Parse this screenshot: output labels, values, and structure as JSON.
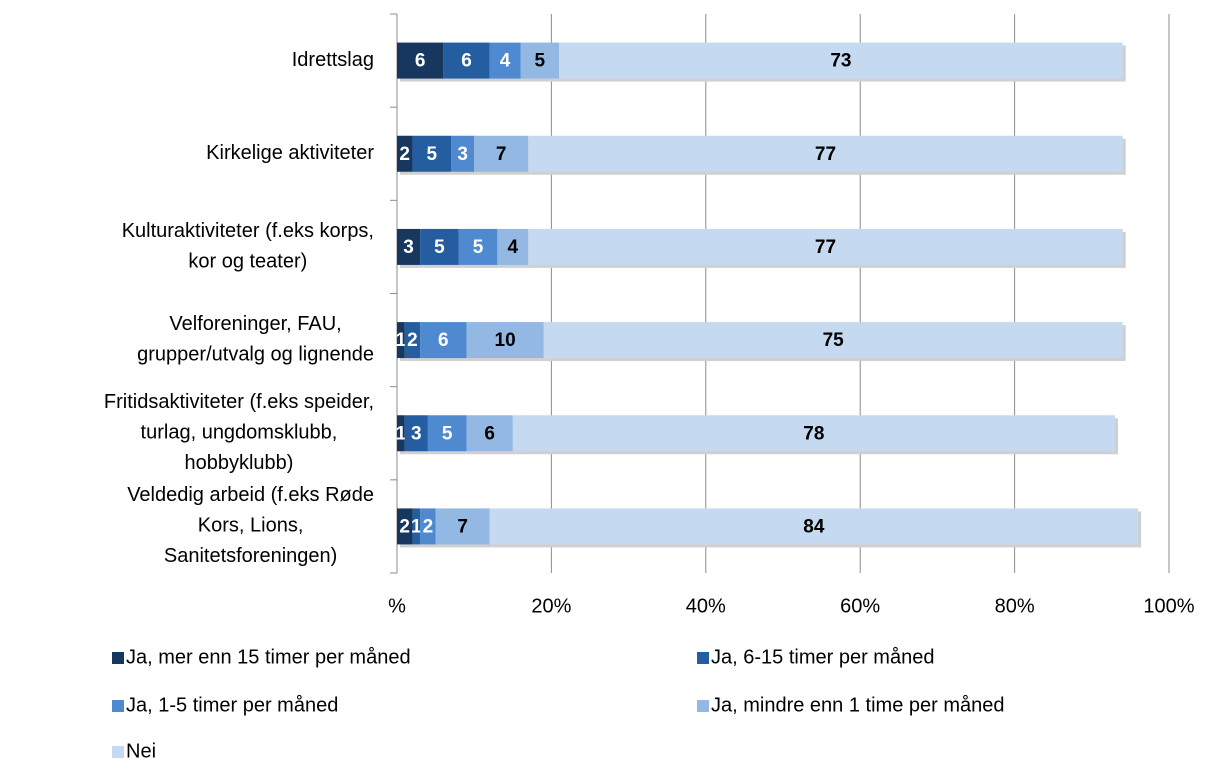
{
  "chart_data": {
    "type": "stacked-bar-horizontal",
    "categories": [
      [
        "Idrettslag"
      ],
      [
        "Kirkelige aktiviteter"
      ],
      [
        "Kulturaktiviteter (f.eks korps,",
        "kor og teater)"
      ],
      [
        "Velforeninger, FAU,",
        "grupper/utvalg og lignende"
      ],
      [
        "Fritidsaktiviteter (f.eks speider,",
        "turlag, ungdomsklubb,",
        "hobbyklubb)"
      ],
      [
        "Veldedig arbeid (f.eks Røde",
        "Kors, Lions,",
        "Sanitetsforeningen)"
      ]
    ],
    "series": [
      {
        "name": "Ja, mer enn 15 timer per måned",
        "color": "#17375e",
        "values": [
          6,
          2,
          3,
          1,
          1,
          2
        ]
      },
      {
        "name": "Ja, 6-15 timer per måned",
        "color": "#255ea0",
        "values": [
          6,
          5,
          5,
          2,
          3,
          1
        ]
      },
      {
        "name": "Ja, 1-5 timer per måned",
        "color": "#4f8ad0",
        "values": [
          4,
          3,
          5,
          6,
          5,
          2
        ]
      },
      {
        "name": "Ja, mindre enn 1 time per måned",
        "color": "#93b8e4",
        "values": [
          5,
          7,
          4,
          10,
          6,
          7
        ]
      },
      {
        "name": "Nei",
        "color": "#c5d9f1",
        "values": [
          73,
          77,
          77,
          75,
          78,
          84
        ]
      }
    ],
    "xlim": [
      0,
      100
    ],
    "xticks": [
      {
        "value": 0,
        "label": "%"
      },
      {
        "value": 20,
        "label": "20%"
      },
      {
        "value": 40,
        "label": "40%"
      },
      {
        "value": 60,
        "label": "60%"
      },
      {
        "value": 80,
        "label": "80%"
      },
      {
        "value": 100,
        "label": "100%"
      }
    ],
    "grid": true,
    "legend": "bottom"
  }
}
